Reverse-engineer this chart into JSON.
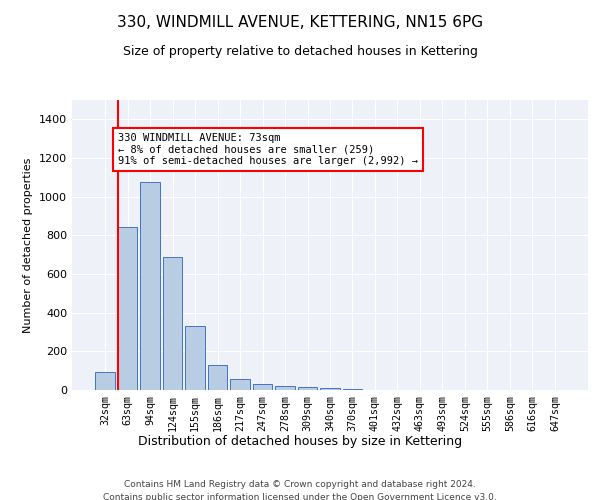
{
  "title": "330, WINDMILL AVENUE, KETTERING, NN15 6PG",
  "subtitle": "Size of property relative to detached houses in Kettering",
  "xlabel": "Distribution of detached houses by size in Kettering",
  "ylabel": "Number of detached properties",
  "categories": [
    "32sqm",
    "63sqm",
    "94sqm",
    "124sqm",
    "155sqm",
    "186sqm",
    "217sqm",
    "247sqm",
    "278sqm",
    "309sqm",
    "340sqm",
    "370sqm",
    "401sqm",
    "432sqm",
    "463sqm",
    "493sqm",
    "524sqm",
    "555sqm",
    "586sqm",
    "616sqm",
    "647sqm"
  ],
  "values": [
    95,
    845,
    1075,
    690,
    330,
    130,
    55,
    30,
    22,
    15,
    10,
    5,
    0,
    0,
    0,
    0,
    0,
    0,
    0,
    0,
    0
  ],
  "bar_color": "#b8cce4",
  "bar_edge_color": "#4472c4",
  "vline_color": "#ff0000",
  "annotation_line1": "330 WINDMILL AVENUE: 73sqm",
  "annotation_line2": "← 8% of detached houses are smaller (259)",
  "annotation_line3": "91% of semi-detached houses are larger (2,992) →",
  "ylim": [
    0,
    1500
  ],
  "yticks": [
    0,
    200,
    400,
    600,
    800,
    1000,
    1200,
    1400
  ],
  "bg_color": "#eef2f8",
  "grid_color": "#ffffff",
  "footer_line1": "Contains HM Land Registry data © Crown copyright and database right 2024.",
  "footer_line2": "Contains public sector information licensed under the Open Government Licence v3.0."
}
